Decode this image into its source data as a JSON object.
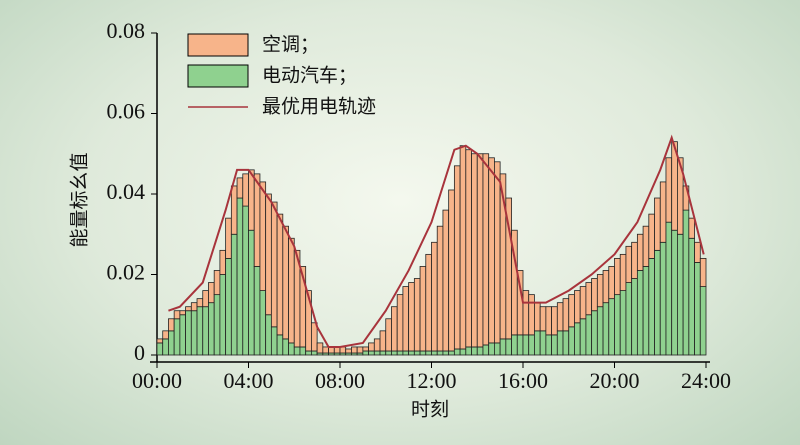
{
  "chart_data": {
    "type": "bar",
    "xlabel": "时刻",
    "ylabel": "能量标幺值",
    "legend": "upper left",
    "grid": false,
    "xlim": [
      0,
      24
    ],
    "ylim": [
      0,
      0.08
    ],
    "xticks": [
      {
        "value": 0,
        "label": "00:00"
      },
      {
        "value": 4,
        "label": "04:00"
      },
      {
        "value": 8,
        "label": "08:00"
      },
      {
        "value": 12,
        "label": "12:00"
      },
      {
        "value": 16,
        "label": "16:00"
      },
      {
        "value": 20,
        "label": "20:00"
      },
      {
        "value": 24,
        "label": "24:00"
      }
    ],
    "yticks": [
      0,
      0.02,
      0.04,
      0.06,
      0.08
    ],
    "x": [
      0.125,
      0.375,
      0.625,
      0.875,
      1.125,
      1.375,
      1.625,
      1.875,
      2.125,
      2.375,
      2.625,
      2.875,
      3.125,
      3.375,
      3.625,
      3.875,
      4.125,
      4.375,
      4.625,
      4.875,
      5.125,
      5.375,
      5.625,
      5.875,
      6.125,
      6.375,
      6.625,
      6.875,
      7.125,
      7.375,
      7.625,
      7.875,
      8.125,
      8.375,
      8.625,
      8.875,
      9.125,
      9.375,
      9.625,
      9.875,
      10.125,
      10.375,
      10.625,
      10.875,
      11.125,
      11.375,
      11.625,
      11.875,
      12.125,
      12.375,
      12.625,
      12.875,
      13.125,
      13.375,
      13.625,
      13.875,
      14.125,
      14.375,
      14.625,
      14.875,
      15.125,
      15.375,
      15.625,
      15.875,
      16.125,
      16.375,
      16.625,
      16.875,
      17.125,
      17.375,
      17.625,
      17.875,
      18.125,
      18.375,
      18.625,
      18.875,
      19.125,
      19.375,
      19.625,
      19.875,
      20.125,
      20.375,
      20.625,
      20.875,
      21.125,
      21.375,
      21.625,
      21.875,
      22.125,
      22.375,
      22.625,
      22.875,
      23.125,
      23.375,
      23.625,
      23.875
    ],
    "series": [
      {
        "name": "电动汽车；",
        "type": "bar",
        "color": "#8fd18f",
        "values": [
          0.003,
          0.004,
          0.006,
          0.009,
          0.01,
          0.011,
          0.011,
          0.012,
          0.012,
          0.013,
          0.015,
          0.02,
          0.024,
          0.03,
          0.039,
          0.037,
          0.031,
          0.022,
          0.016,
          0.01,
          0.007,
          0.005,
          0.004,
          0.003,
          0.002,
          0.002,
          0.001,
          0.001,
          0.0005,
          0.0005,
          0.0005,
          0.0005,
          0.0005,
          0.0005,
          0.0005,
          0.0005,
          0.001,
          0.001,
          0.001,
          0.001,
          0.001,
          0.001,
          0.001,
          0.001,
          0.001,
          0.001,
          0.001,
          0.001,
          0.001,
          0.001,
          0.001,
          0.001,
          0.0015,
          0.0015,
          0.002,
          0.002,
          0.002,
          0.0025,
          0.003,
          0.003,
          0.004,
          0.004,
          0.005,
          0.005,
          0.005,
          0.005,
          0.006,
          0.006,
          0.005,
          0.005,
          0.006,
          0.006,
          0.007,
          0.008,
          0.009,
          0.01,
          0.011,
          0.012,
          0.013,
          0.014,
          0.015,
          0.016,
          0.018,
          0.019,
          0.021,
          0.022,
          0.024,
          0.026,
          0.028,
          0.033,
          0.031,
          0.03,
          0.036,
          0.029,
          0.023,
          0.017
        ]
      },
      {
        "name": "空调；",
        "type": "bar",
        "color": "#f7b48a",
        "values": [
          0.001,
          0.002,
          0.003,
          0.002,
          0.001,
          0.001,
          0.002,
          0.002,
          0.004,
          0.005,
          0.006,
          0.006,
          0.01,
          0.012,
          0.005,
          0.008,
          0.015,
          0.023,
          0.027,
          0.03,
          0.031,
          0.03,
          0.028,
          0.026,
          0.024,
          0.02,
          0.015,
          0.007,
          0.0025,
          0.0015,
          0.0015,
          0.0015,
          0.0015,
          0.001,
          0.0015,
          0.0015,
          0.001,
          0.002,
          0.003,
          0.005,
          0.008,
          0.011,
          0.014,
          0.016,
          0.017,
          0.018,
          0.021,
          0.024,
          0.027,
          0.031,
          0.035,
          0.04,
          0.0455,
          0.0505,
          0.049,
          0.048,
          0.048,
          0.0475,
          0.046,
          0.045,
          0.041,
          0.035,
          0.026,
          0.016,
          0.011,
          0.01,
          0.007,
          0.006,
          0.007,
          0.007,
          0.007,
          0.008,
          0.008,
          0.008,
          0.008,
          0.008,
          0.008,
          0.008,
          0.008,
          0.008,
          0.009,
          0.009,
          0.009,
          0.009,
          0.009,
          0.01,
          0.011,
          0.013,
          0.015,
          0.016,
          0.022,
          0.019,
          0.006,
          0.005,
          0.005,
          0.007
        ]
      },
      {
        "name": "最优用电轨迹",
        "type": "line",
        "color": "#a8343c",
        "x": [
          0.5,
          1,
          2,
          3,
          3.5,
          4,
          5,
          6,
          7,
          7.5,
          8,
          9,
          10,
          11,
          12,
          13,
          13.5,
          14,
          15,
          16,
          17,
          18,
          19,
          20,
          21,
          22,
          22.5,
          23,
          23.9
        ],
        "values": [
          0.011,
          0.012,
          0.018,
          0.036,
          0.046,
          0.046,
          0.038,
          0.027,
          0.007,
          0.002,
          0.002,
          0.003,
          0.011,
          0.021,
          0.033,
          0.051,
          0.052,
          0.05,
          0.043,
          0.013,
          0.013,
          0.016,
          0.02,
          0.025,
          0.033,
          0.046,
          0.054,
          0.045,
          0.025
        ]
      }
    ]
  }
}
